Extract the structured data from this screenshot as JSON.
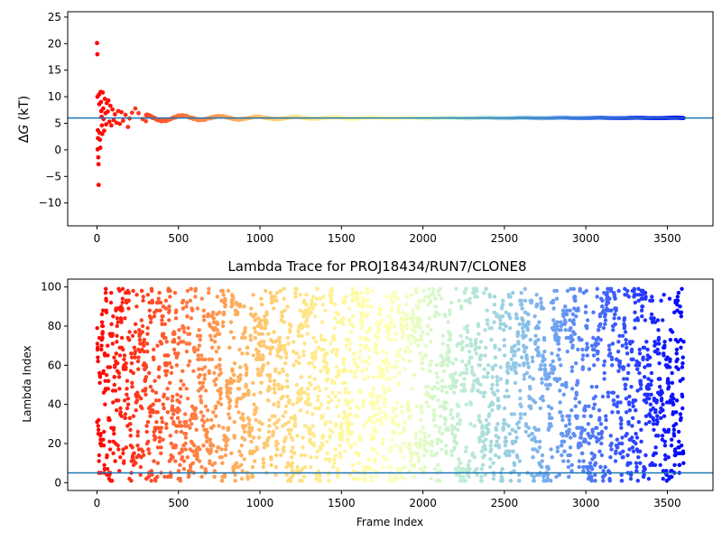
{
  "chart_data": [
    {
      "type": "scatter",
      "title": "",
      "xlabel": "",
      "ylabel": "ΔG (kT)",
      "ylabel_prefix": "Δ",
      "ylabel_var": "G",
      "ylabel_unit": " (kT)",
      "xlim": [
        -180,
        3780
      ],
      "ylim": [
        -14.3,
        26
      ],
      "xticks": [
        0,
        500,
        1000,
        1500,
        2000,
        2500,
        3000,
        3500
      ],
      "yticks": [
        -10,
        -5,
        0,
        5,
        10,
        15,
        20,
        25
      ],
      "xtick_labels": [
        "0",
        "500",
        "1000",
        "1500",
        "2000",
        "2500",
        "3000",
        "3500"
      ],
      "ytick_labels": [
        "−10",
        "−5",
        "0",
        "5",
        "10",
        "15",
        "20",
        "25"
      ],
      "colormap": "rainbow (red at frame 0 → violet at frame 3600)",
      "hline": {
        "y": 6.0,
        "color": "#1f77b4"
      },
      "early_points": [
        [
          0,
          20.1
        ],
        [
          2,
          18.0
        ],
        [
          3,
          10.0
        ],
        [
          5,
          3.7
        ],
        [
          6,
          2.2
        ],
        [
          4,
          0.1
        ],
        [
          8,
          -1.4
        ],
        [
          9,
          -2.7
        ],
        [
          10,
          -6.6
        ],
        [
          12,
          10.4
        ],
        [
          14,
          8.6
        ],
        [
          16,
          3.2
        ],
        [
          18,
          1.9
        ],
        [
          20,
          0.4
        ],
        [
          22,
          10.9
        ],
        [
          24,
          9.0
        ],
        [
          26,
          7.3
        ],
        [
          28,
          6.2
        ],
        [
          30,
          4.6
        ],
        [
          32,
          3.0
        ],
        [
          35,
          10.8
        ],
        [
          38,
          7.8
        ],
        [
          40,
          5.8
        ],
        [
          44,
          3.6
        ],
        [
          48,
          9.6
        ],
        [
          52,
          6.9
        ],
        [
          56,
          4.8
        ],
        [
          60,
          8.8
        ],
        [
          66,
          7.2
        ],
        [
          70,
          9.3
        ],
        [
          76,
          5.3
        ],
        [
          82,
          8.3
        ],
        [
          88,
          4.6
        ],
        [
          95,
          7.6
        ],
        [
          102,
          5.6
        ],
        [
          110,
          6.7
        ],
        [
          120,
          5.1
        ],
        [
          130,
          7.3
        ],
        [
          140,
          4.9
        ],
        [
          150,
          7.1
        ],
        [
          160,
          5.5
        ],
        [
          175,
          6.6
        ],
        [
          190,
          4.3
        ],
        [
          200,
          5.9
        ],
        [
          215,
          7.0
        ],
        [
          235,
          7.8
        ],
        [
          255,
          6.9
        ],
        [
          280,
          5.8
        ],
        [
          300,
          5.4
        ]
      ],
      "tail": {
        "x_range": [
          300,
          3600
        ],
        "mean": 6.0,
        "noise": "small oscillation < 0.6 kT, damping to ~0.05 kT by frame 2500"
      }
    },
    {
      "type": "scatter",
      "title": "Lambda Trace for PROJ18434/RUN7/CLONE8",
      "xlabel": "Frame Index",
      "ylabel": "Lambda Index",
      "xlim": [
        -180,
        3780
      ],
      "ylim": [
        -4,
        104
      ],
      "xticks": [
        0,
        500,
        1000,
        1500,
        2000,
        2500,
        3000,
        3500
      ],
      "yticks": [
        0,
        20,
        40,
        60,
        80,
        100
      ],
      "xtick_labels": [
        "0",
        "500",
        "1000",
        "1500",
        "2000",
        "2500",
        "3000",
        "3500"
      ],
      "ytick_labels": [
        "0",
        "20",
        "40",
        "60",
        "80",
        "100"
      ],
      "colormap": "rainbow (red at frame 0 → violet at frame 3600)",
      "hline": {
        "y": 5,
        "color": "#1f77b4"
      },
      "frames": 3600,
      "lambda_range": [
        1,
        99
      ],
      "distribution": "approximately uniform random walk over lambda 1–99 across all frames"
    }
  ]
}
